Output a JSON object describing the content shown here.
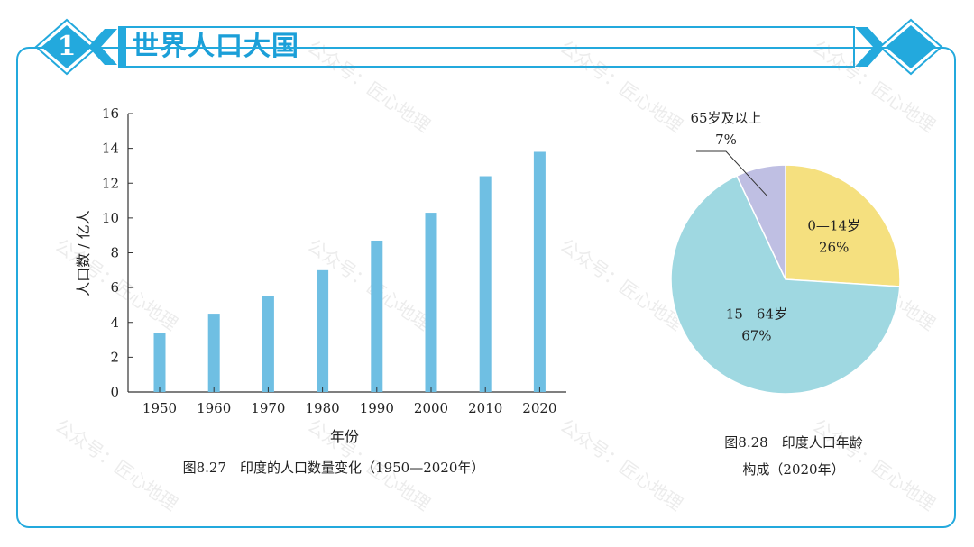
{
  "header": {
    "number": "1",
    "title": "世界人口大国"
  },
  "watermark": "公众号：匠心地理",
  "colors": {
    "accent": "#23a9dd",
    "bar": "#6fbfe3",
    "pie_0_14": "#f5e07f",
    "pie_15_64": "#9fd8e1",
    "pie_65": "#bfbfe3"
  },
  "chart_data": [
    {
      "type": "bar",
      "title": "图8.27　印度的人口数量变化（1950—2020年）",
      "xlabel": "年份",
      "ylabel": "人口数 / 亿人",
      "categories": [
        "1950",
        "1960",
        "1970",
        "1980",
        "1990",
        "2000",
        "2010",
        "2020"
      ],
      "values": [
        3.4,
        4.5,
        5.5,
        7.0,
        8.7,
        10.3,
        12.4,
        13.8
      ],
      "ylim": [
        0,
        16
      ],
      "yticks": [
        "0",
        "2",
        "4",
        "6",
        "8",
        "10",
        "12",
        "14",
        "16"
      ],
      "grid": false
    },
    {
      "type": "pie",
      "title_line1": "图8.28　印度人口年龄",
      "title_line2": "构成（2020年）",
      "slices": [
        {
          "label": "0—14岁",
          "value": 26,
          "percent": "26%"
        },
        {
          "label": "15—64岁",
          "value": 67,
          "percent": "67%"
        },
        {
          "label": "65岁及以上",
          "value": 7,
          "percent": "7%"
        }
      ]
    }
  ]
}
